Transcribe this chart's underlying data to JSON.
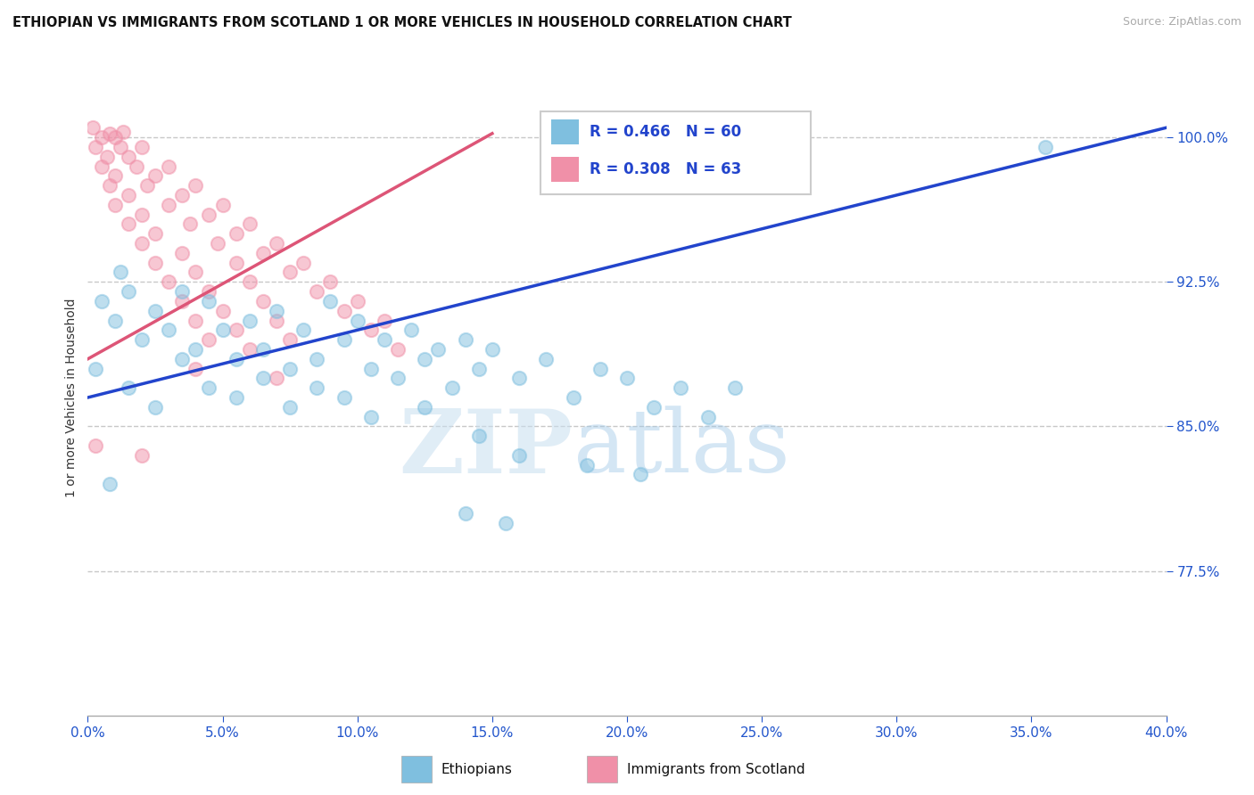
{
  "title": "ETHIOPIAN VS IMMIGRANTS FROM SCOTLAND 1 OR MORE VEHICLES IN HOUSEHOLD CORRELATION CHART",
  "source": "Source: ZipAtlas.com",
  "ylabel_label": "1 or more Vehicles in Household",
  "legend_blue_label": "R = 0.466   N = 60",
  "legend_pink_label": "R = 0.308   N = 63",
  "legend_bottom_blue": "Ethiopians",
  "legend_bottom_pink": "Immigrants from Scotland",
  "blue_color": "#7fbfdf",
  "pink_color": "#f090a8",
  "blue_line_color": "#2244cc",
  "pink_line_color": "#dd5577",
  "x_min": 0.0,
  "x_max": 40.0,
  "y_min": 70.0,
  "y_max": 103.0,
  "yticks": [
    77.5,
    85.0,
    92.5,
    100.0
  ],
  "xticks": [
    0,
    5,
    10,
    15,
    20,
    25,
    30,
    35,
    40
  ],
  "R_blue": 0.466,
  "N_blue": 60,
  "R_pink": 0.308,
  "N_pink": 63,
  "blue_line_x0": 0.0,
  "blue_line_y0": 86.5,
  "blue_line_x1": 40.0,
  "blue_line_y1": 100.5,
  "pink_line_x0": 0.0,
  "pink_line_y0": 88.5,
  "pink_line_x1": 15.0,
  "pink_line_y1": 100.2,
  "blue_scatter": [
    [
      0.5,
      91.5
    ],
    [
      1.0,
      90.5
    ],
    [
      1.2,
      93.0
    ],
    [
      1.5,
      92.0
    ],
    [
      2.0,
      89.5
    ],
    [
      2.5,
      91.0
    ],
    [
      3.0,
      90.0
    ],
    [
      3.5,
      92.0
    ],
    [
      4.0,
      89.0
    ],
    [
      4.5,
      91.5
    ],
    [
      5.0,
      90.0
    ],
    [
      5.5,
      88.5
    ],
    [
      6.0,
      90.5
    ],
    [
      6.5,
      89.0
    ],
    [
      7.0,
      91.0
    ],
    [
      7.5,
      88.0
    ],
    [
      8.0,
      90.0
    ],
    [
      8.5,
      88.5
    ],
    [
      9.0,
      91.5
    ],
    [
      9.5,
      89.5
    ],
    [
      10.0,
      90.5
    ],
    [
      10.5,
      88.0
    ],
    [
      11.0,
      89.5
    ],
    [
      11.5,
      87.5
    ],
    [
      12.0,
      90.0
    ],
    [
      12.5,
      88.5
    ],
    [
      13.0,
      89.0
    ],
    [
      13.5,
      87.0
    ],
    [
      14.0,
      89.5
    ],
    [
      14.5,
      88.0
    ],
    [
      15.0,
      89.0
    ],
    [
      16.0,
      87.5
    ],
    [
      17.0,
      88.5
    ],
    [
      18.0,
      86.5
    ],
    [
      19.0,
      88.0
    ],
    [
      20.0,
      87.5
    ],
    [
      21.0,
      86.0
    ],
    [
      22.0,
      87.0
    ],
    [
      23.0,
      85.5
    ],
    [
      24.0,
      87.0
    ],
    [
      0.3,
      88.0
    ],
    [
      1.5,
      87.0
    ],
    [
      2.5,
      86.0
    ],
    [
      3.5,
      88.5
    ],
    [
      4.5,
      87.0
    ],
    [
      5.5,
      86.5
    ],
    [
      6.5,
      87.5
    ],
    [
      7.5,
      86.0
    ],
    [
      8.5,
      87.0
    ],
    [
      9.5,
      86.5
    ],
    [
      10.5,
      85.5
    ],
    [
      12.5,
      86.0
    ],
    [
      14.5,
      84.5
    ],
    [
      16.0,
      83.5
    ],
    [
      18.5,
      83.0
    ],
    [
      20.5,
      82.5
    ],
    [
      0.8,
      82.0
    ],
    [
      14.0,
      80.5
    ],
    [
      15.5,
      80.0
    ],
    [
      35.5,
      99.5
    ]
  ],
  "pink_scatter": [
    [
      0.2,
      100.5
    ],
    [
      0.5,
      100.0
    ],
    [
      0.8,
      100.2
    ],
    [
      1.0,
      100.0
    ],
    [
      1.3,
      100.3
    ],
    [
      0.3,
      99.5
    ],
    [
      0.7,
      99.0
    ],
    [
      1.2,
      99.5
    ],
    [
      1.5,
      99.0
    ],
    [
      2.0,
      99.5
    ],
    [
      0.5,
      98.5
    ],
    [
      1.0,
      98.0
    ],
    [
      1.8,
      98.5
    ],
    [
      2.5,
      98.0
    ],
    [
      3.0,
      98.5
    ],
    [
      0.8,
      97.5
    ],
    [
      1.5,
      97.0
    ],
    [
      2.2,
      97.5
    ],
    [
      3.5,
      97.0
    ],
    [
      4.0,
      97.5
    ],
    [
      1.0,
      96.5
    ],
    [
      2.0,
      96.0
    ],
    [
      3.0,
      96.5
    ],
    [
      4.5,
      96.0
    ],
    [
      5.0,
      96.5
    ],
    [
      1.5,
      95.5
    ],
    [
      2.5,
      95.0
    ],
    [
      3.8,
      95.5
    ],
    [
      5.5,
      95.0
    ],
    [
      6.0,
      95.5
    ],
    [
      2.0,
      94.5
    ],
    [
      3.5,
      94.0
    ],
    [
      4.8,
      94.5
    ],
    [
      6.5,
      94.0
    ],
    [
      7.0,
      94.5
    ],
    [
      2.5,
      93.5
    ],
    [
      4.0,
      93.0
    ],
    [
      5.5,
      93.5
    ],
    [
      7.5,
      93.0
    ],
    [
      8.0,
      93.5
    ],
    [
      3.0,
      92.5
    ],
    [
      4.5,
      92.0
    ],
    [
      6.0,
      92.5
    ],
    [
      8.5,
      92.0
    ],
    [
      9.0,
      92.5
    ],
    [
      3.5,
      91.5
    ],
    [
      5.0,
      91.0
    ],
    [
      6.5,
      91.5
    ],
    [
      9.5,
      91.0
    ],
    [
      10.0,
      91.5
    ],
    [
      4.0,
      90.5
    ],
    [
      5.5,
      90.0
    ],
    [
      7.0,
      90.5
    ],
    [
      10.5,
      90.0
    ],
    [
      11.0,
      90.5
    ],
    [
      4.5,
      89.5
    ],
    [
      6.0,
      89.0
    ],
    [
      7.5,
      89.5
    ],
    [
      11.5,
      89.0
    ],
    [
      0.3,
      84.0
    ],
    [
      2.0,
      83.5
    ],
    [
      4.0,
      88.0
    ],
    [
      7.0,
      87.5
    ]
  ]
}
